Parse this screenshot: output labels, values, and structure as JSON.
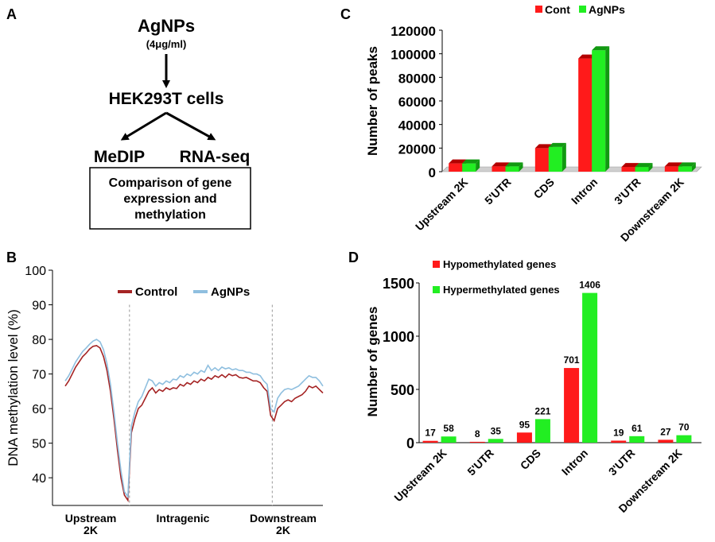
{
  "panels": {
    "a": {
      "letter": "A",
      "agnps": "AgNPs",
      "dose": "(4μg/ml)",
      "cells": "HEK293T cells",
      "medip": "MeDIP",
      "rnaseq": "RNA-seq",
      "box_lines": [
        "Comparison of gene",
        "expression and",
        "methylation"
      ]
    },
    "b": {
      "letter": "B"
    },
    "c": {
      "letter": "C"
    },
    "d": {
      "letter": "D"
    }
  },
  "colors": {
    "red": "#ff1a1a",
    "red_dark": "#b30000",
    "green": "#22ee22",
    "green_dark": "#119911",
    "control_line": "#a52424",
    "agnps_line": "#8fbfdf"
  },
  "chart_data": [
    {
      "id": "B",
      "type": "line",
      "ylabel": "DNA methylation level (%)",
      "ylim": [
        32,
        100
      ],
      "yticks": [
        40,
        50,
        60,
        70,
        80,
        90,
        100
      ],
      "region_labels": [
        [
          "Upstream",
          "2K"
        ],
        [
          "Intragenic"
        ],
        [
          "Downstream",
          "2K"
        ]
      ],
      "legend": "top-right",
      "series": [
        {
          "name": "Control",
          "values": [
            66.5,
            68,
            70,
            72,
            73.5,
            75,
            76,
            77.2,
            78,
            78.2,
            77.5,
            75,
            71,
            65,
            57,
            48,
            40,
            35,
            33.5,
            53,
            57,
            60,
            61,
            63,
            65,
            66,
            64.5,
            65.5,
            65,
            66,
            65.5,
            66,
            65.8,
            67,
            66.5,
            67.5,
            67,
            68,
            67.5,
            68.5,
            68,
            69,
            68.5,
            69.5,
            69,
            69.8,
            69,
            70,
            69.5,
            69.8,
            69,
            68.8,
            69,
            68.5,
            68,
            68,
            67.5,
            66,
            65,
            58,
            56.5,
            60,
            61,
            62,
            62.5,
            62,
            63,
            63.5,
            64,
            65,
            66.5,
            66,
            66.5,
            65.5,
            64.5
          ]
        },
        {
          "name": "AgNPs",
          "values": [
            68,
            69.5,
            71.5,
            73.5,
            75,
            76.5,
            77.5,
            78.6,
            79.5,
            80,
            79.3,
            77,
            73,
            67,
            59,
            50,
            42,
            36,
            34.5,
            55,
            59,
            62,
            63.5,
            66,
            68.5,
            68,
            66.5,
            67.5,
            67,
            68,
            67.5,
            68.5,
            68.3,
            69.5,
            69,
            70,
            69.5,
            70.5,
            70,
            71,
            70.5,
            72.5,
            71,
            71.8,
            71,
            72,
            71.5,
            71.8,
            71.2,
            71.5,
            71,
            71,
            70.5,
            70.5,
            70,
            70,
            69.5,
            68,
            67,
            60,
            59,
            63,
            64.5,
            65.5,
            65.8,
            65.5,
            66,
            66.5,
            67.5,
            68.5,
            69.5,
            69,
            69,
            68,
            66.5
          ]
        }
      ]
    },
    {
      "id": "C",
      "type": "bar",
      "ylabel": "Number of peaks",
      "ylim": [
        0,
        120000
      ],
      "yticks": [
        0,
        20000,
        40000,
        60000,
        80000,
        100000,
        120000
      ],
      "legend": "top",
      "categories": [
        "Upstream 2K",
        "5'UTR",
        "CDS",
        "Intron",
        "3'UTR",
        "Downstream 2K"
      ],
      "series": [
        {
          "name": "Cont",
          "values": [
            7000,
            4500,
            20000,
            96000,
            4000,
            4500
          ]
        },
        {
          "name": "AgNPs",
          "values": [
            7000,
            4500,
            21000,
            103000,
            4000,
            4500
          ]
        }
      ]
    },
    {
      "id": "D",
      "type": "bar",
      "ylabel": "Number of genes",
      "ylim": [
        0,
        1500
      ],
      "yticks": [
        0,
        500,
        1000,
        1500
      ],
      "legend": "top-left",
      "categories": [
        "Upstream 2K",
        "5'UTR",
        "CDS",
        "Intron",
        "3'UTR",
        "Downstream 2K"
      ],
      "series": [
        {
          "name": "Hypomethylated genes",
          "values": [
            17,
            8,
            95,
            701,
            19,
            27
          ]
        },
        {
          "name": "Hypermethylated genes",
          "values": [
            58,
            35,
            221,
            1406,
            61,
            70
          ]
        }
      ]
    }
  ]
}
